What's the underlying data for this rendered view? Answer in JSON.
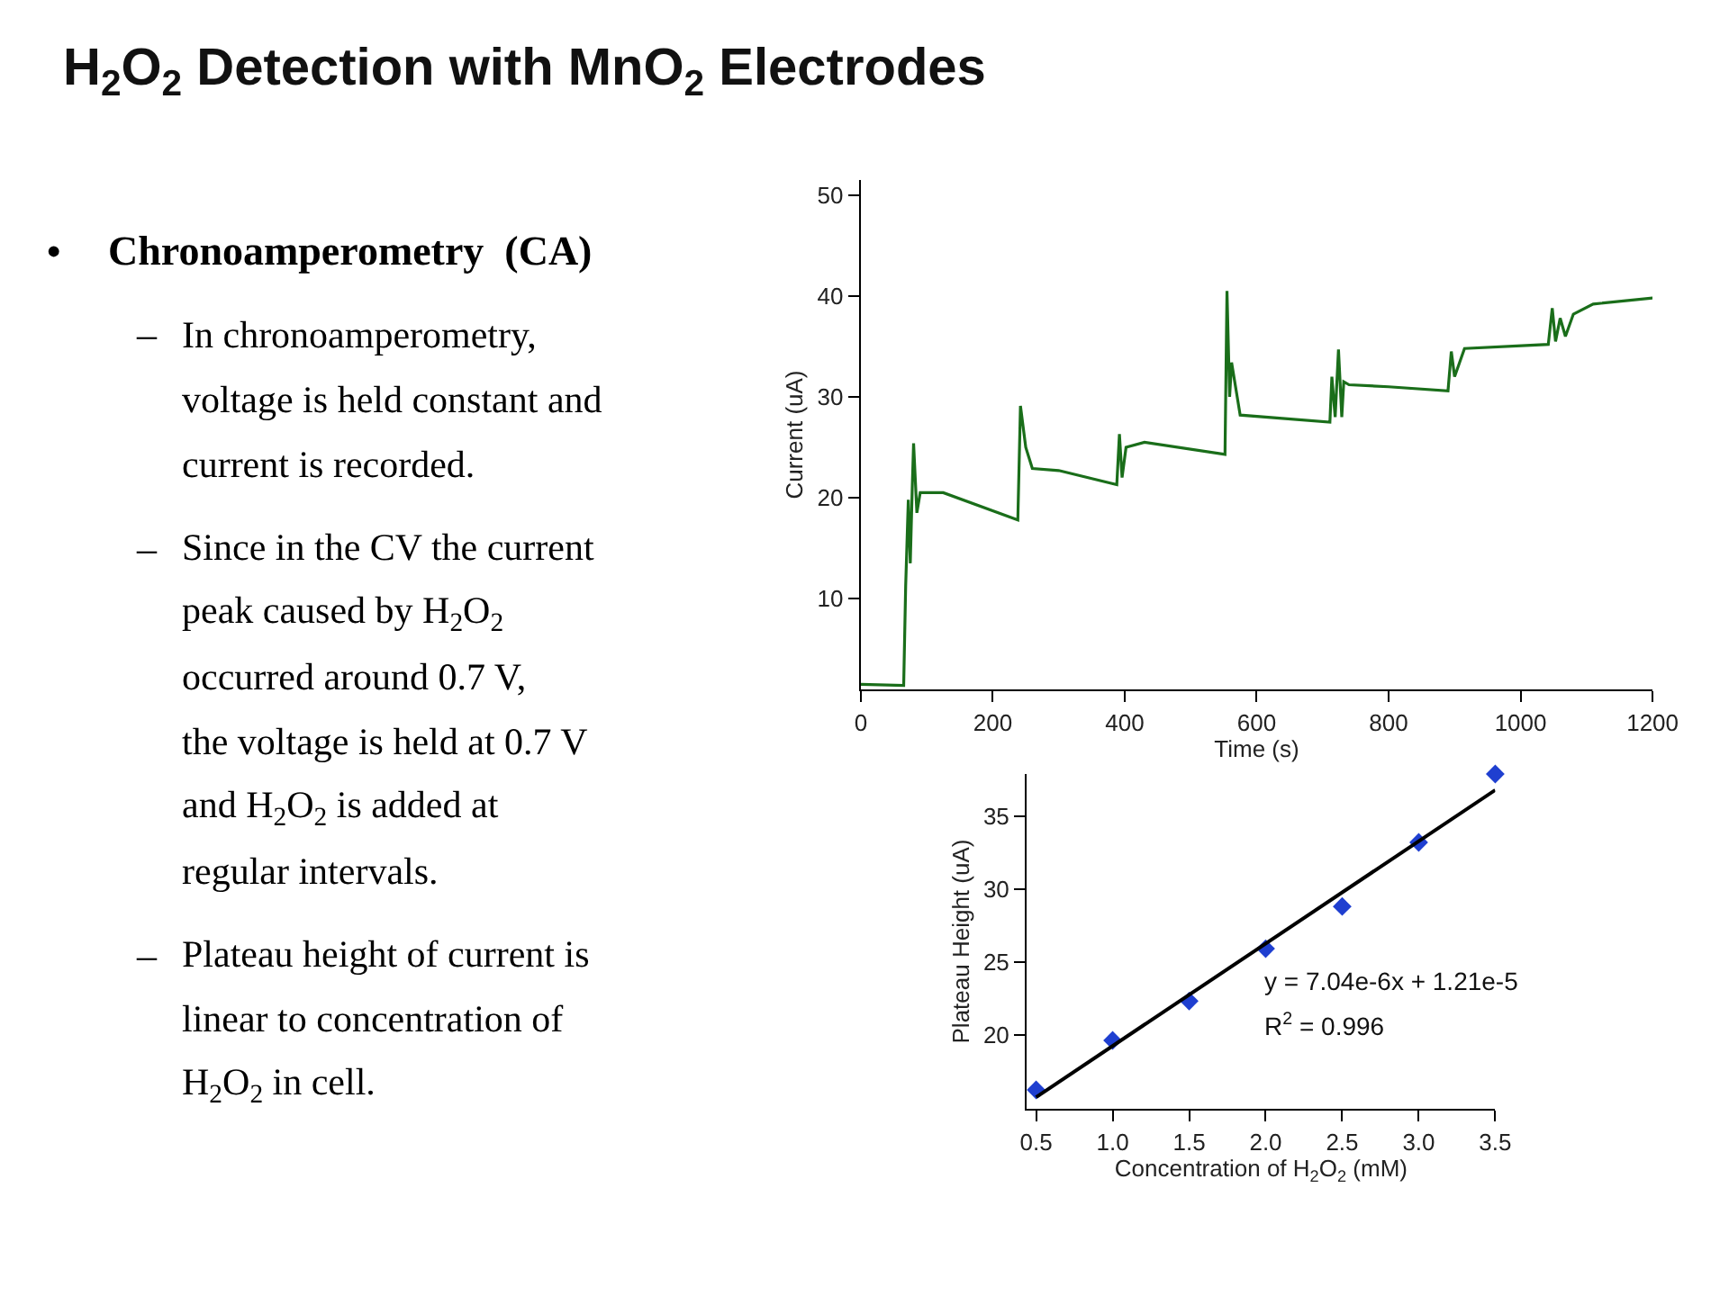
{
  "chart_data": [
    {
      "type": "other",
      "title": "H$_{2}$O$_{2}$ Detection with MnO$_{2}$ Electrodes",
      "annotations": [
        "•",
        "Chronoamperometry  (CA)",
        "–",
        "In chronoamperometry,\nvoltage is held constant and\ncurrent is recorded.",
        "–",
        "Since in the CV the current\npeak caused by H$_{2}$O$_{2}$\noccurred around 0.7 V,\nthe voltage is held at 0.7 V\nand H$_{2}$O$_{2}$ is added at\nregular intervals.",
        "–",
        "Plateau height of current is\nlinear to concentration of\nH$_{2}$O$_{2}$ in cell."
      ]
    },
    {
      "type": "line",
      "xlabel": "Time (s)",
      "ylabel": "Current (uA)",
      "xlim": [
        0,
        1200
      ],
      "xticks": [
        0,
        200,
        400,
        600,
        800,
        1000,
        1200
      ],
      "ylim": [
        1,
        51.5
      ],
      "yticks": [
        10,
        20,
        30,
        40,
        50
      ],
      "series": [
        {
          "color": "#1a6e1a",
          "x": [
            0,
            65,
            68,
            72,
            75,
            78,
            80,
            85,
            90,
            125,
            238,
            242,
            250,
            260,
            300,
            388,
            392,
            396,
            402,
            430,
            552,
            555,
            559,
            562,
            575,
            711,
            714,
            719,
            724,
            729,
            732,
            740,
            800,
            890,
            895,
            900,
            915,
            1042,
            1048,
            1053,
            1060,
            1068,
            1080,
            1110,
            1200
          ],
          "values": [
            1.5,
            1.4,
            11.2,
            19.8,
            13.5,
            21,
            25.4,
            18.5,
            20.5,
            20.5,
            17.8,
            29.1,
            25,
            22.9,
            22.7,
            21.3,
            26.3,
            22,
            25,
            25.5,
            24.3,
            40.5,
            30,
            33.4,
            28.2,
            27.5,
            32,
            28,
            34.7,
            28,
            31.5,
            31.2,
            31,
            30.6,
            34.5,
            32,
            34.8,
            35.2,
            38.8,
            35.5,
            37.8,
            36,
            38.2,
            39.2,
            39.8
          ]
        }
      ]
    },
    {
      "type": "scatter",
      "xlabel": "Concentration of H$_{2}$O$_{2}$ (mM)",
      "ylabel": "Plateau Height (uA)",
      "xlim": [
        0.44,
        3.5
      ],
      "xticks": [
        0.5,
        {
          "value": 1,
          "label": "1.0"
        },
        1.5,
        {
          "value": 2,
          "label": "2.0"
        },
        2.5,
        {
          "value": 3,
          "label": "3.0"
        },
        3.5
      ],
      "ylim": [
        14.9,
        37.9
      ],
      "yticks": [
        20,
        25,
        30,
        35
      ],
      "series": [
        {
          "type": "scatter",
          "marker": "diamond",
          "color": "#1f3fd0",
          "x": [
            0.5,
            1.0,
            1.5,
            2.0,
            2.5,
            3.0,
            3.5
          ],
          "values": [
            16.2,
            19.6,
            22.3,
            25.9,
            28.8,
            33.2,
            37.9
          ]
        },
        {
          "type": "line",
          "color": "#000000",
          "x": [
            0.5,
            3.5
          ],
          "values": [
            15.7,
            36.8
          ]
        }
      ],
      "annotations": [
        "y = 7.04e-6x + 1.21e-5",
        "R$^{2}$ = 0.996"
      ]
    }
  ]
}
